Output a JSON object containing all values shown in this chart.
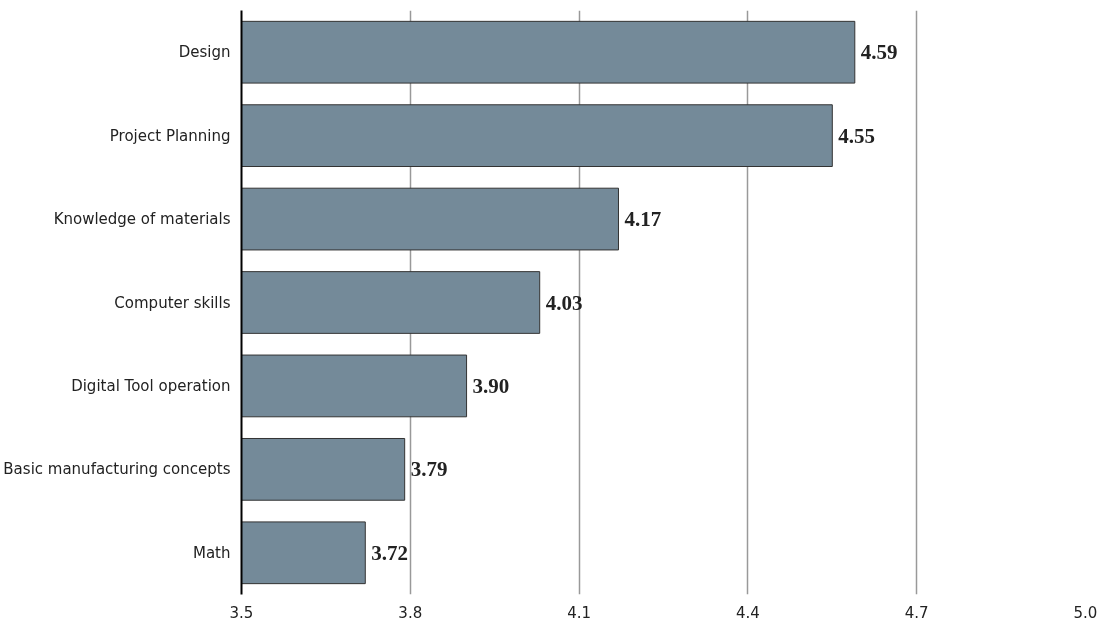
{
  "chart_data": {
    "type": "bar",
    "orientation": "horizontal",
    "categories": [
      "Design",
      "Project Planning",
      "Knowledge of materials",
      "Computer skills",
      "Digital Tool operation",
      "Basic manufacturing concepts",
      "Math"
    ],
    "values": [
      4.59,
      4.55,
      4.17,
      4.03,
      3.9,
      3.79,
      3.72
    ],
    "value_labels": [
      "4.59",
      "4.55",
      "4.17",
      "4.03",
      "3.90",
      "3.79",
      "3.72"
    ],
    "color": "#748a99",
    "xlim": [
      3.5,
      5.0
    ],
    "xticks": [
      3.5,
      3.8,
      4.1,
      4.4,
      4.7,
      {
        "value": 5.0,
        "label": "5.0"
      }
    ],
    "grid": "x"
  }
}
